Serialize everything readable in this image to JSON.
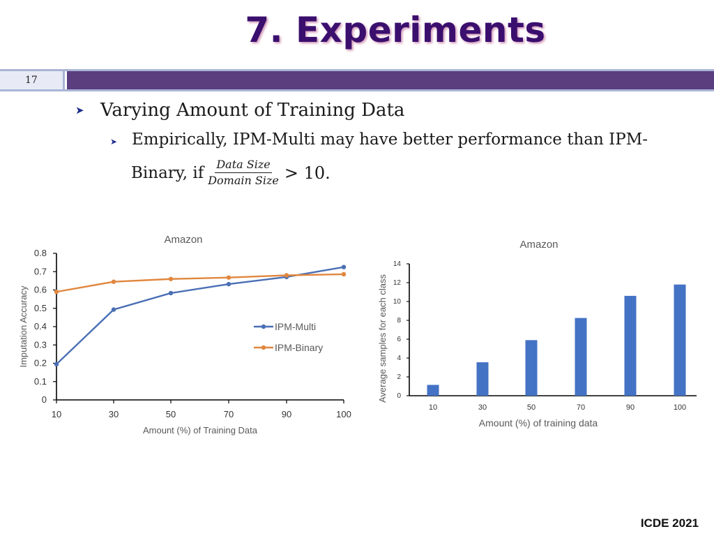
{
  "slide": {
    "title": "7. Experiments",
    "number": "17",
    "bullet_main": "Varying Amount of Training Data",
    "bullet_sub_line1": "Empirically, IPM-Multi may have better performance than IPM-",
    "bullet_sub_prefix": "Binary, if",
    "frac_num": "Data Size",
    "frac_den": "Domain Size",
    "frac_suffix": "> 10.",
    "footer": "ICDE 2021"
  },
  "colors": {
    "title": "#3a0f6e",
    "band": "#5a3e7e",
    "multi": "#4a6fb5",
    "binary": "#e0873e",
    "bar": "#4472c4"
  },
  "chart_data": [
    {
      "type": "line",
      "title": "Amazon",
      "xlabel": "Amount (%) of Training Data",
      "ylabel": "Imputation Accuracy",
      "categories": [
        "10",
        "30",
        "50",
        "70",
        "90",
        "100"
      ],
      "yticks": [
        "0",
        "0.1",
        "0.2",
        "0.3",
        "0.4",
        "0.5",
        "0.6",
        "0.7",
        "0.8"
      ],
      "ylim": [
        0,
        0.8
      ],
      "legend": "center-right",
      "series": [
        {
          "name": "IPM-Multi",
          "values": [
            0.195,
            0.493,
            0.583,
            0.632,
            0.671,
            0.725
          ]
        },
        {
          "name": "IPM-Binary",
          "values": [
            0.59,
            0.645,
            0.66,
            0.668,
            0.68,
            0.686
          ]
        }
      ]
    },
    {
      "type": "bar",
      "title": "Amazon",
      "xlabel": "Amount (%) of training data",
      "ylabel": "Average samples for each class",
      "categories": [
        "10",
        "30",
        "50",
        "70",
        "90",
        "100"
      ],
      "yticks": [
        "0",
        "2",
        "4",
        "6",
        "8",
        "10",
        "12",
        "14"
      ],
      "ylim": [
        0,
        14
      ],
      "values": [
        1.15,
        3.55,
        5.9,
        8.25,
        10.6,
        11.8
      ]
    }
  ]
}
